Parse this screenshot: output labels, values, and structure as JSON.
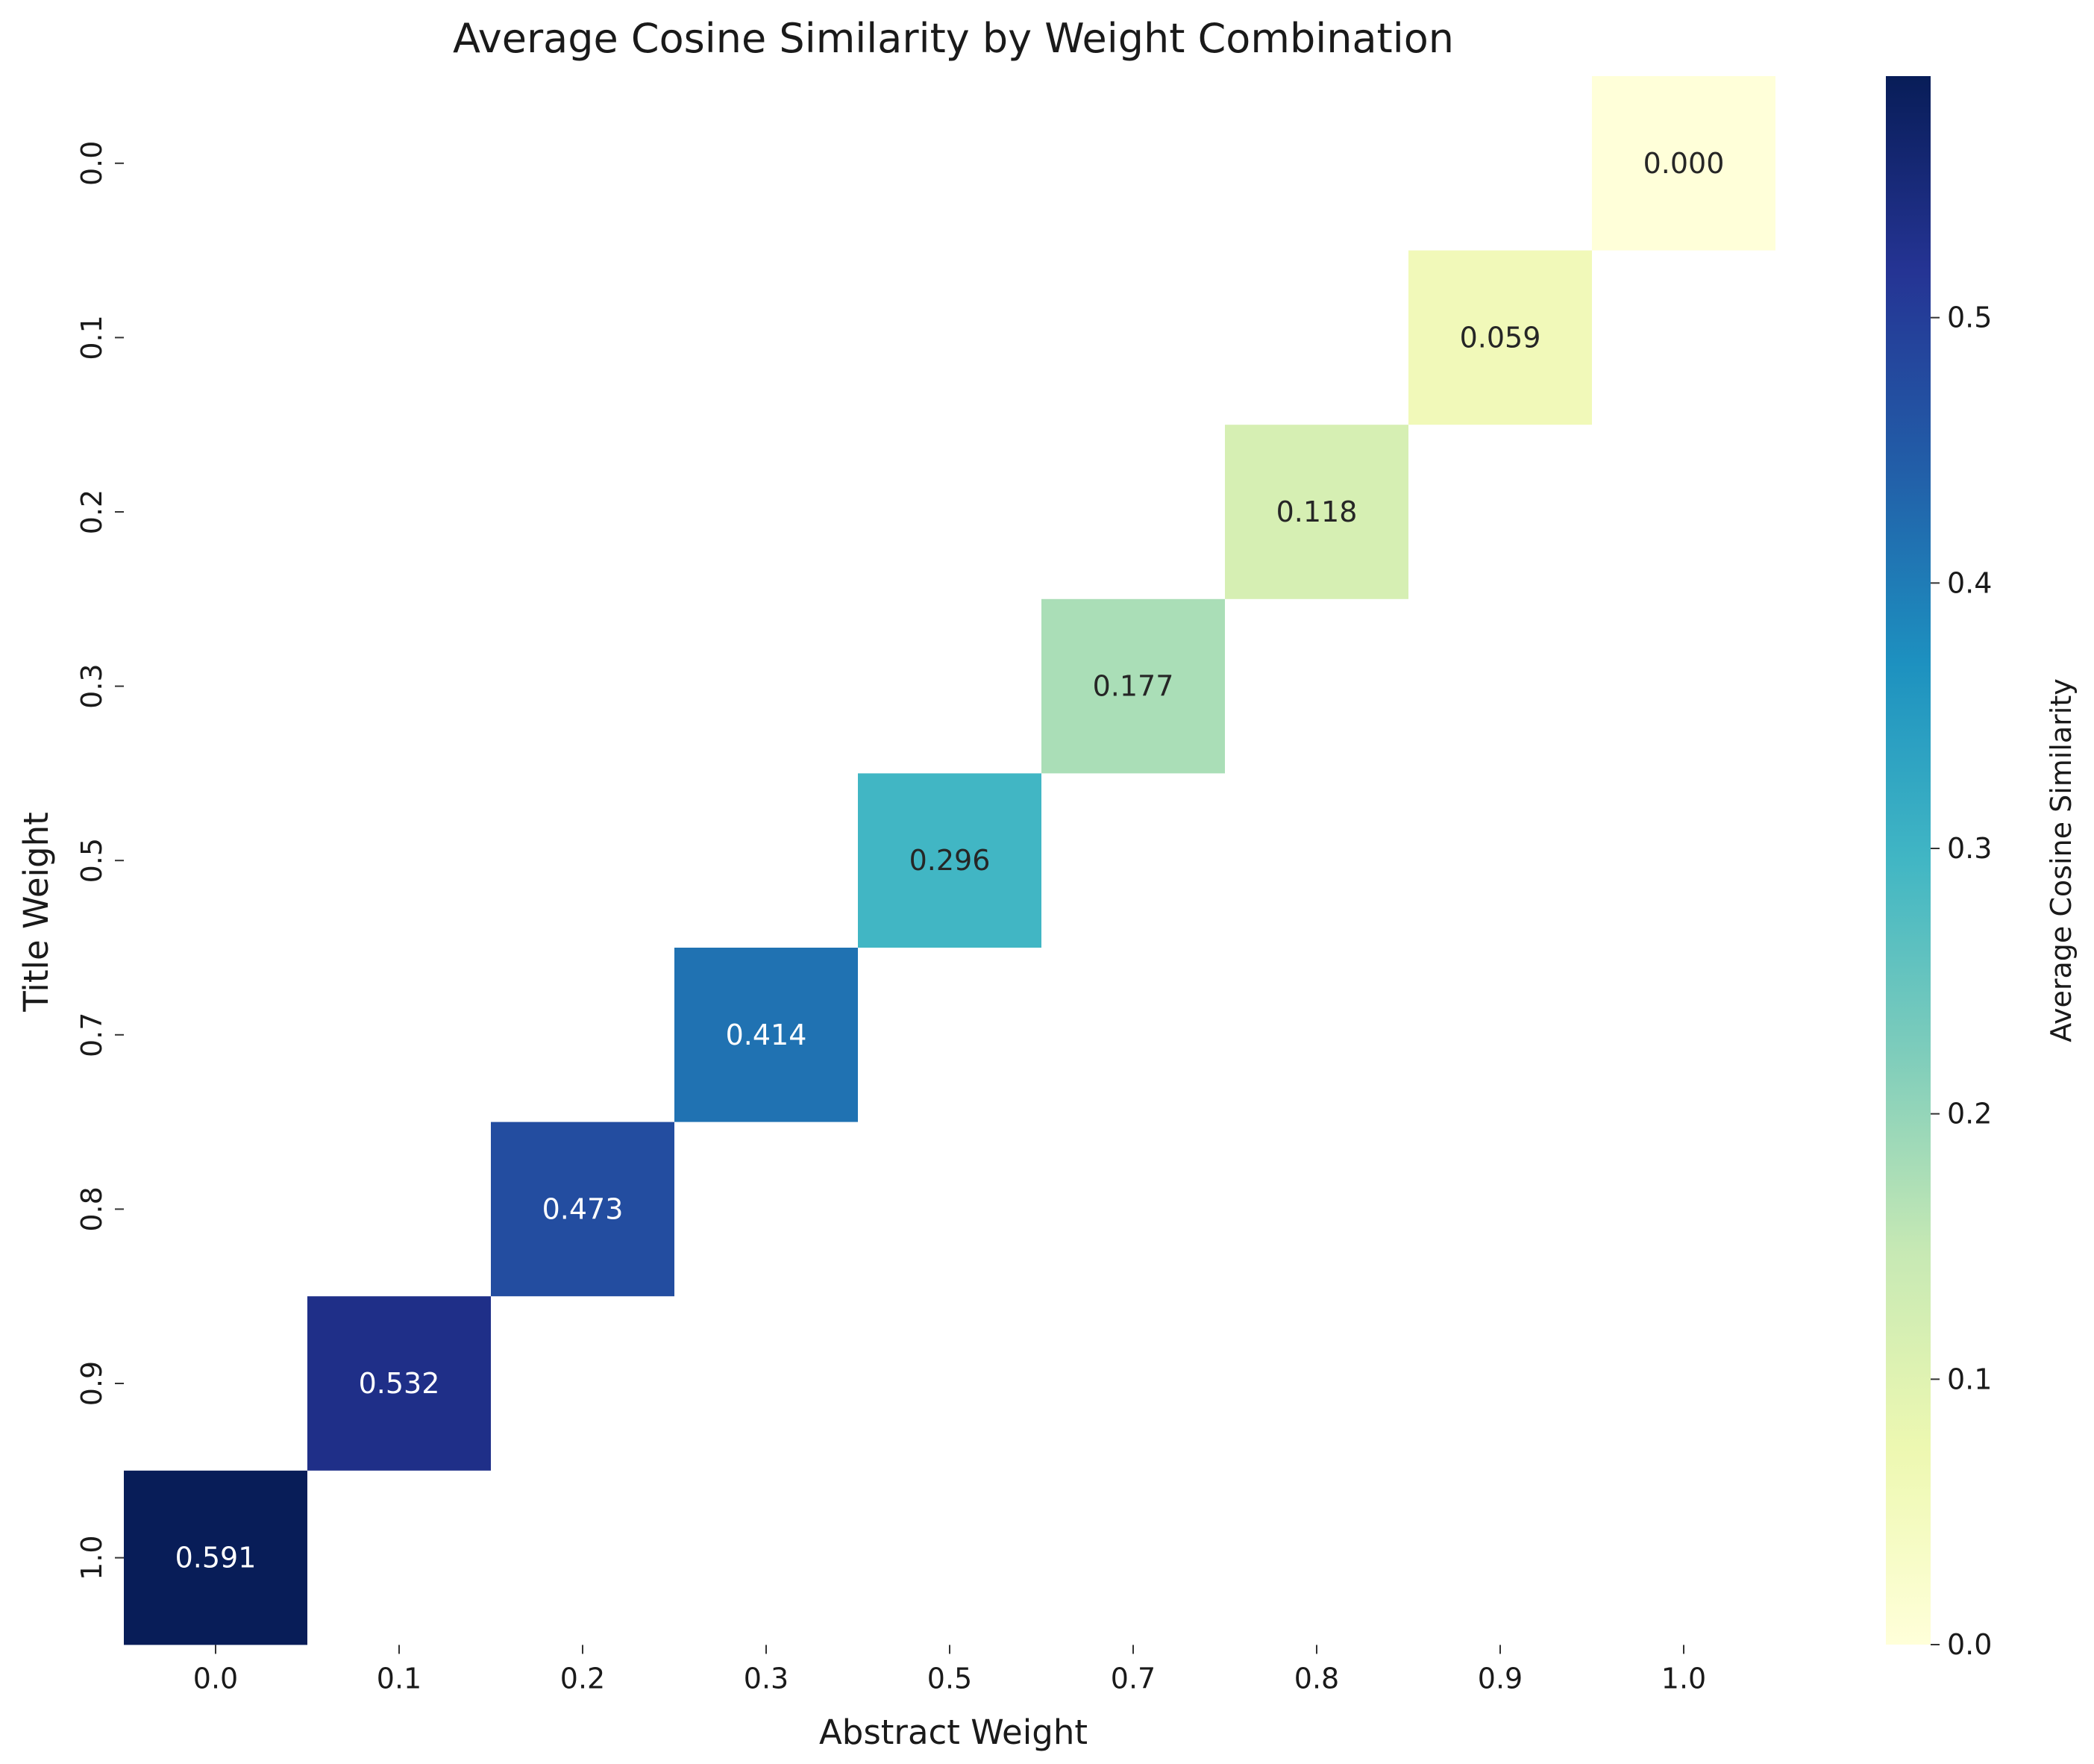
{
  "chart_data": {
    "type": "heatmap",
    "title": "Average Cosine Similarity by Weight Combination",
    "xlabel": "Abstract Weight",
    "ylabel": "Title Weight",
    "x_categories": [
      "0.0",
      "0.1",
      "0.2",
      "0.3",
      "0.5",
      "0.7",
      "0.8",
      "0.9",
      "1.0"
    ],
    "y_categories": [
      "0.0",
      "0.1",
      "0.2",
      "0.3",
      "0.5",
      "0.7",
      "0.8",
      "0.9",
      "1.0"
    ],
    "cells": [
      {
        "x": "1.0",
        "y": "0.0",
        "value": 0.0,
        "label": "0.000"
      },
      {
        "x": "0.9",
        "y": "0.1",
        "value": 0.059,
        "label": "0.059"
      },
      {
        "x": "0.8",
        "y": "0.2",
        "value": 0.118,
        "label": "0.118"
      },
      {
        "x": "0.7",
        "y": "0.3",
        "value": 0.177,
        "label": "0.177"
      },
      {
        "x": "0.5",
        "y": "0.5",
        "value": 0.296,
        "label": "0.296"
      },
      {
        "x": "0.3",
        "y": "0.7",
        "value": 0.414,
        "label": "0.414"
      },
      {
        "x": "0.2",
        "y": "0.8",
        "value": 0.473,
        "label": "0.473"
      },
      {
        "x": "0.1",
        "y": "0.9",
        "value": 0.532,
        "label": "0.532"
      },
      {
        "x": "0.0",
        "y": "1.0",
        "value": 0.591,
        "label": "0.591"
      }
    ],
    "colorbar": {
      "label": "Average Cosine Similarity",
      "range": [
        0.0,
        0.591
      ],
      "ticks": [
        "0.0",
        "0.1",
        "0.2",
        "0.3",
        "0.4",
        "0.5"
      ],
      "colormap": "YlGnBu"
    },
    "grid": false
  }
}
